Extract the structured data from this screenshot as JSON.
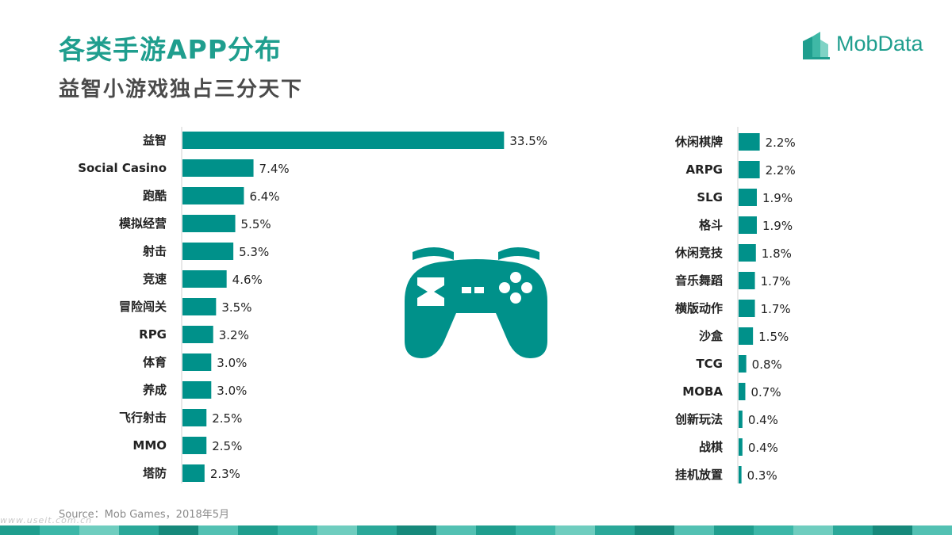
{
  "header": {
    "title": "各类手游APP分布",
    "subtitle": "益智小游戏独占三分天下"
  },
  "logo": {
    "text": "MobData"
  },
  "source": "Source：Mob Games，2018年5月",
  "watermark": "www.useit.com.cn",
  "icon": "gamepad-icon",
  "colors": {
    "accent": "#00918a",
    "title": "#1f9e8e",
    "subtitle": "#4a4a4a"
  },
  "chart_data": [
    {
      "type": "bar",
      "orientation": "horizontal",
      "categories": [
        "益智",
        "Social Casino",
        "跑酷",
        "模拟经营",
        "射击",
        "竞速",
        "冒险闯关",
        "RPG",
        "体育",
        "养成",
        "飞行射击",
        "MMO",
        "塔防"
      ],
      "values": [
        33.5,
        7.4,
        6.4,
        5.5,
        5.3,
        4.6,
        3.5,
        3.2,
        3.0,
        3.0,
        2.5,
        2.5,
        2.3
      ],
      "labels": [
        "33.5%",
        "7.4%",
        "6.4%",
        "5.5%",
        "5.3%",
        "4.6%",
        "3.5%",
        "3.2%",
        "3.0%",
        "3.0%",
        "2.5%",
        "2.5%",
        "2.3%"
      ],
      "unit": "%"
    },
    {
      "type": "bar",
      "orientation": "horizontal",
      "categories": [
        "休闲棋牌",
        "ARPG",
        "SLG",
        "格斗",
        "休闲竞技",
        "音乐舞蹈",
        "横版动作",
        "沙盒",
        "TCG",
        "MOBA",
        "创新玩法",
        "战棋",
        "挂机放置"
      ],
      "values": [
        2.2,
        2.2,
        1.9,
        1.9,
        1.8,
        1.7,
        1.7,
        1.5,
        0.8,
        0.7,
        0.4,
        0.4,
        0.3
      ],
      "labels": [
        "2.2%",
        "2.2%",
        "1.9%",
        "1.9%",
        "1.8%",
        "1.7%",
        "1.7%",
        "1.5%",
        "0.8%",
        "0.7%",
        "0.4%",
        "0.4%",
        "0.3%"
      ],
      "unit": "%"
    }
  ]
}
